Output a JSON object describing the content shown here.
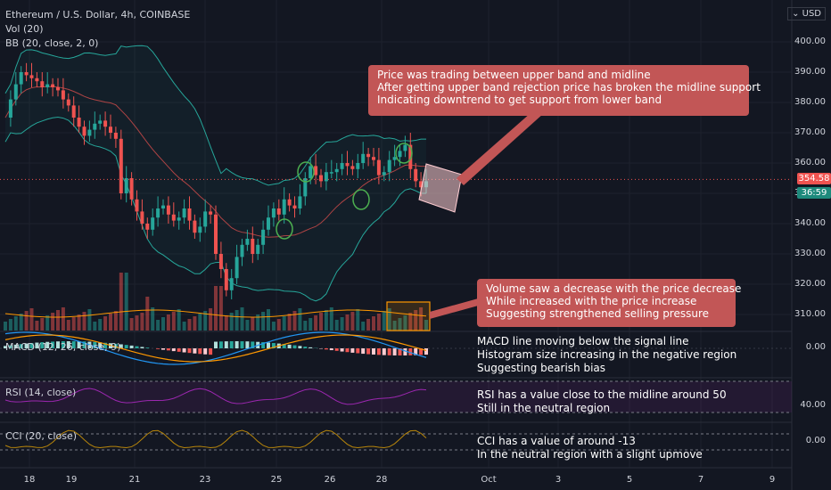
{
  "header": {
    "title": "Ethereum / U.S. Dollar, 4h, COINBASE",
    "vol": "Vol (20)",
    "bb": "BB (20, close, 2, 0)",
    "currency": "USD"
  },
  "indicators": {
    "macd": "MACD (12, 26, close, 9)",
    "rsi": "RSI (14, close)",
    "cci": "CCI (20, close)"
  },
  "price_axis": [
    "400.00",
    "390.00",
    "380.00",
    "370.00",
    "360.00",
    "350.00",
    "340.00",
    "330.00",
    "320.00",
    "310.00"
  ],
  "macd_axis": "0.00",
  "rsi_axis": "40.00",
  "cci_axis": "0.00",
  "current_price": "354.58",
  "countdown": "36:59",
  "x_axis": [
    "18",
    "19",
    "21",
    "23",
    "25",
    "26",
    "28",
    "Oct",
    "3",
    "5",
    "7",
    "9"
  ],
  "annotations": {
    "price": [
      "Price was trading between upper band and midline",
      "After getting upper band rejection price has broken the midline support",
      "Indicating downtrend to get support from lower band"
    ],
    "volume": [
      "Volume saw a decrease with the price decrease",
      "While increased with the price increase",
      "Suggesting strengthened selling pressure"
    ],
    "macd": [
      "MACD line moving below the signal line",
      "Histogram size increasing in the negative region",
      "Suggesting bearish bias"
    ],
    "rsi": [
      "RSI has a value close to the midline around 50",
      "Still in the neutral region"
    ],
    "cci": [
      "CCI has a value of around -13",
      "In the neutral region with a slight upmove"
    ]
  },
  "colors": {
    "up": "#26a69a",
    "down": "#ef5350",
    "band": "#26a69a",
    "basis": "#ef5350",
    "rsi": "#9c27b0",
    "cci": "#b8860b",
    "macd": "#2196f3",
    "signal": "#ff9800",
    "callout": "#c25656"
  },
  "chart_data": {
    "type": "candlestick",
    "title": "Ethereum / U.S. Dollar, 4h, COINBASE",
    "ylim": [
      305,
      405
    ],
    "close": [
      375,
      381,
      386,
      390,
      389,
      388,
      387,
      385,
      386,
      385,
      384,
      381,
      379,
      375,
      372,
      369,
      371,
      373,
      374,
      372,
      370,
      368,
      350,
      355,
      348,
      344,
      340,
      338,
      342,
      345,
      346,
      343,
      341,
      342,
      345,
      341,
      337,
      339,
      344,
      343,
      330,
      325,
      318,
      322,
      329,
      333,
      335,
      330,
      333,
      338,
      342,
      345,
      343,
      348,
      346,
      345,
      349,
      355,
      359,
      356,
      354,
      357,
      357,
      358,
      360,
      359,
      358,
      360,
      363,
      362,
      361,
      356,
      357,
      361,
      362,
      364,
      366,
      358,
      354,
      352,
      354
    ],
    "volume_note": "estimated relative volumes"
  }
}
